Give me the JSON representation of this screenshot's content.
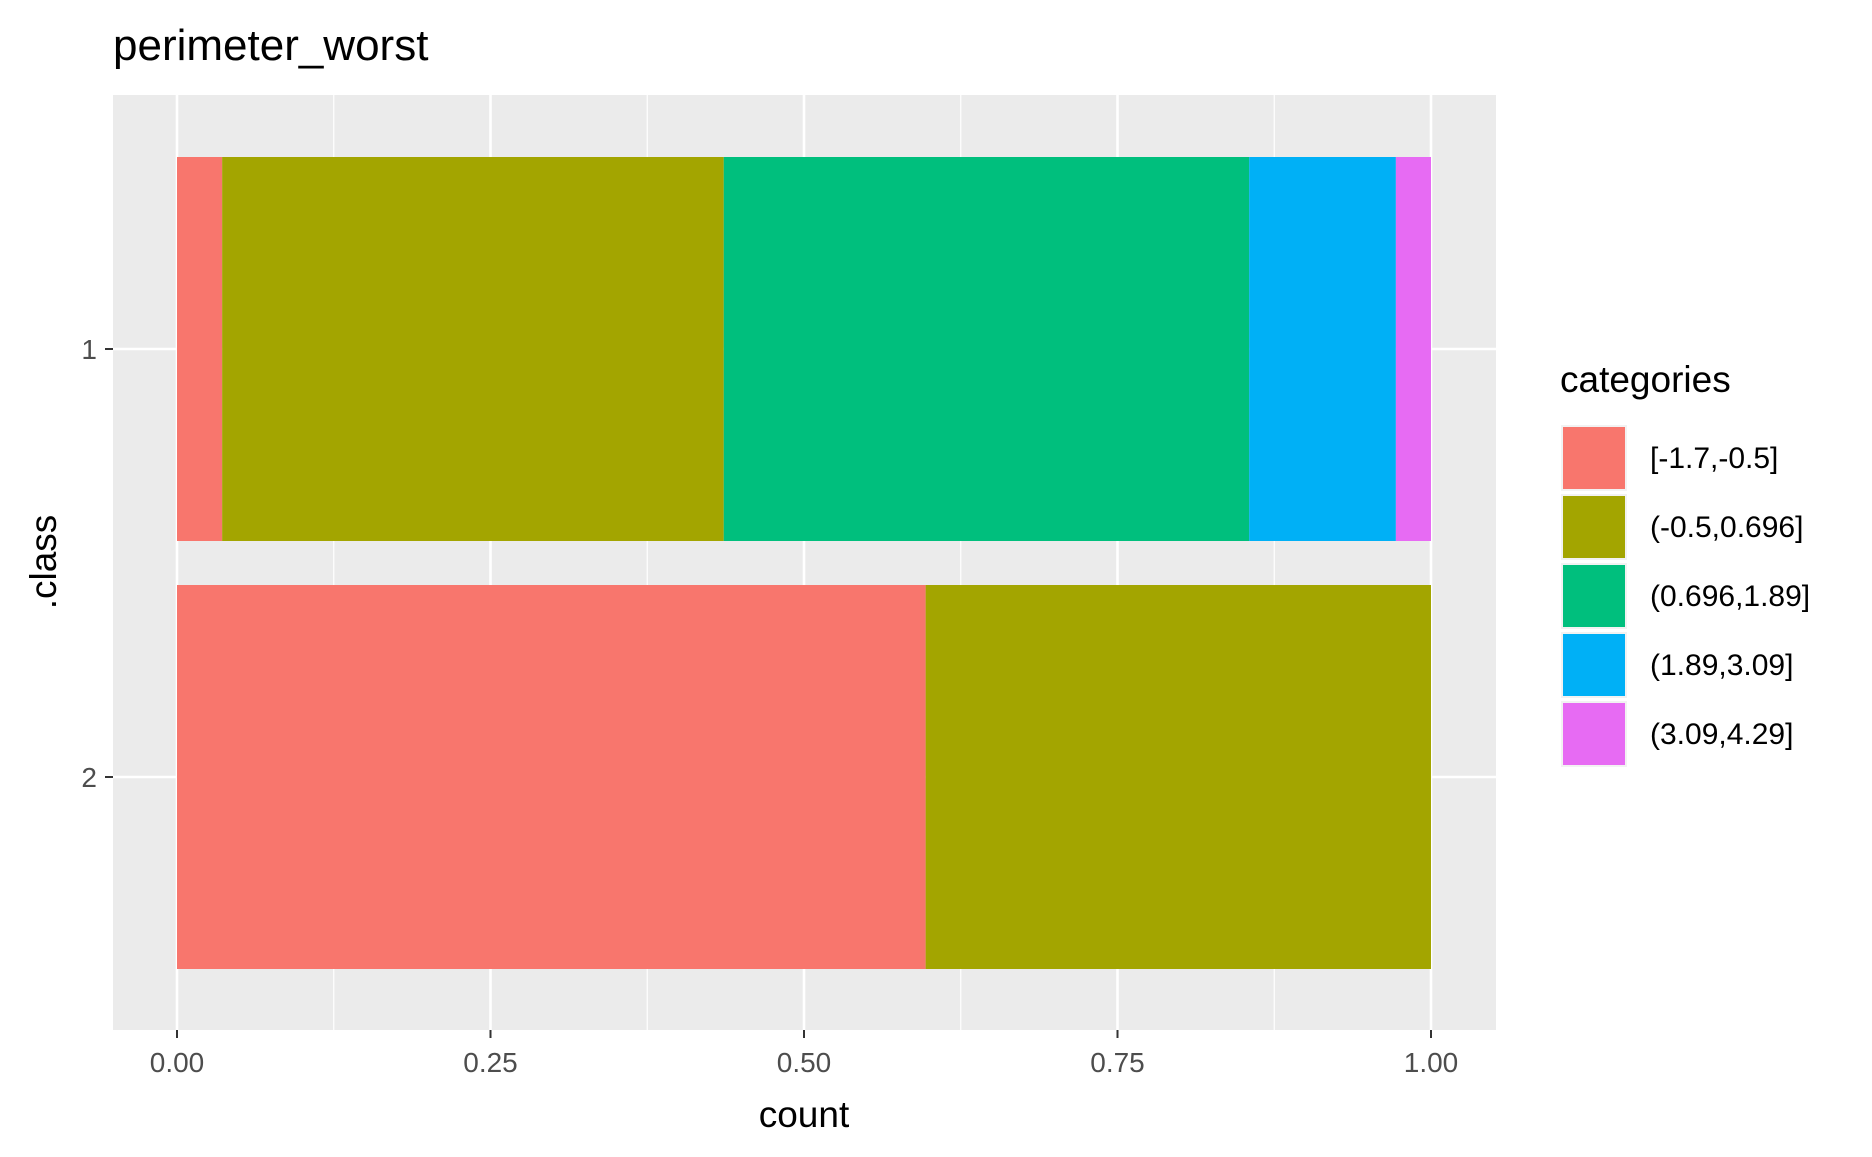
{
  "chart_data": {
    "type": "bar",
    "orientation": "horizontal",
    "stacked": true,
    "title": "perimeter_worst",
    "xlabel": "count",
    "ylabel": ".class",
    "xlim": [
      0,
      1
    ],
    "x_ticks": [
      "0.00",
      "0.25",
      "0.50",
      "0.75",
      "1.00"
    ],
    "categories": [
      "1",
      "2"
    ],
    "legend_title": "categories",
    "legend_position": "right",
    "grid": true,
    "series": [
      {
        "name": "[-1.7,-0.5]",
        "color": "#F8766D",
        "values": [
          0.036,
          0.597
        ]
      },
      {
        "name": "(-0.5,0.696]",
        "color": "#A3A500",
        "values": [
          0.4,
          0.403
        ]
      },
      {
        "name": "(0.696,1.89]",
        "color": "#00BF7D",
        "values": [
          0.419,
          0.0
        ]
      },
      {
        "name": "(1.89,3.09]",
        "color": "#00B0F6",
        "values": [
          0.117,
          0.0
        ]
      },
      {
        "name": "(3.09,4.29]",
        "color": "#E76BF3",
        "values": [
          0.028,
          0.0
        ]
      }
    ]
  }
}
